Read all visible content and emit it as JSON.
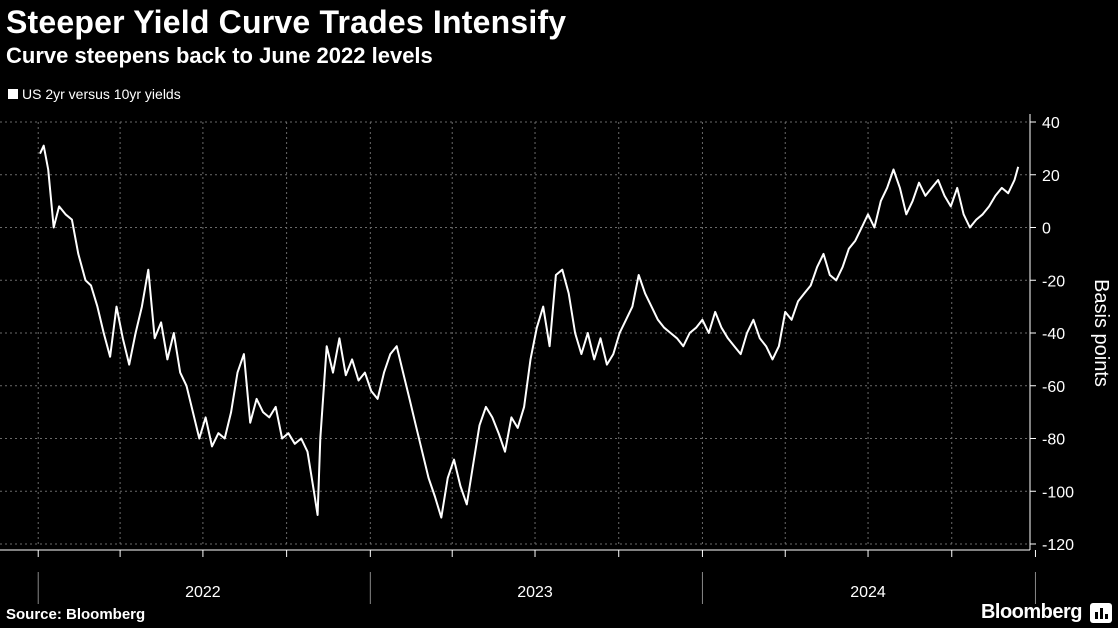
{
  "chart_data": {
    "type": "line",
    "title": "Steeper Yield Curve Trades Intensify",
    "subtitle": "Curve steepens back to June 2022 levels",
    "ylabel": "Basis points",
    "ylim": [
      -120,
      40
    ],
    "yticks": [
      40,
      20,
      0,
      -20,
      -40,
      -60,
      -80,
      -100,
      -120
    ],
    "xlim": [
      "2022-01-01",
      "2024-12-31"
    ],
    "xlabels": [
      "2022",
      "2023",
      "2024"
    ],
    "grid": true,
    "legend_position": "top-left",
    "series": [
      {
        "name": "US 2yr versus 10yr yields",
        "color": "#ffffff",
        "points": [
          [
            "2022-01-03",
            28
          ],
          [
            "2022-01-07",
            31
          ],
          [
            "2022-01-12",
            22
          ],
          [
            "2022-01-18",
            0
          ],
          [
            "2022-01-24",
            8
          ],
          [
            "2022-01-31",
            5
          ],
          [
            "2022-02-07",
            3
          ],
          [
            "2022-02-14",
            -10
          ],
          [
            "2022-02-22",
            -20
          ],
          [
            "2022-02-28",
            -22
          ],
          [
            "2022-03-07",
            -30
          ],
          [
            "2022-03-14",
            -40
          ],
          [
            "2022-03-21",
            -49
          ],
          [
            "2022-03-28",
            -30
          ],
          [
            "2022-04-04",
            -42
          ],
          [
            "2022-04-11",
            -52
          ],
          [
            "2022-04-18",
            -40
          ],
          [
            "2022-04-25",
            -30
          ],
          [
            "2022-05-02",
            -16
          ],
          [
            "2022-05-09",
            -42
          ],
          [
            "2022-05-16",
            -36
          ],
          [
            "2022-05-23",
            -50
          ],
          [
            "2022-05-30",
            -40
          ],
          [
            "2022-06-06",
            -55
          ],
          [
            "2022-06-13",
            -60
          ],
          [
            "2022-06-20",
            -70
          ],
          [
            "2022-06-27",
            -80
          ],
          [
            "2022-07-04",
            -72
          ],
          [
            "2022-07-11",
            -83
          ],
          [
            "2022-07-18",
            -78
          ],
          [
            "2022-07-25",
            -80
          ],
          [
            "2022-08-01",
            -70
          ],
          [
            "2022-08-08",
            -55
          ],
          [
            "2022-08-15",
            -48
          ],
          [
            "2022-08-22",
            -74
          ],
          [
            "2022-08-29",
            -65
          ],
          [
            "2022-09-05",
            -70
          ],
          [
            "2022-09-12",
            -72
          ],
          [
            "2022-09-19",
            -68
          ],
          [
            "2022-09-26",
            -80
          ],
          [
            "2022-10-03",
            -78
          ],
          [
            "2022-10-10",
            -82
          ],
          [
            "2022-10-17",
            -80
          ],
          [
            "2022-10-24",
            -85
          ],
          [
            "2022-10-31",
            -100
          ],
          [
            "2022-11-04",
            -109
          ],
          [
            "2022-11-07",
            -80
          ],
          [
            "2022-11-14",
            -45
          ],
          [
            "2022-11-21",
            -55
          ],
          [
            "2022-11-28",
            -42
          ],
          [
            "2022-12-05",
            -56
          ],
          [
            "2022-12-12",
            -50
          ],
          [
            "2022-12-19",
            -58
          ],
          [
            "2022-12-26",
            -55
          ],
          [
            "2023-01-02",
            -62
          ],
          [
            "2023-01-09",
            -65
          ],
          [
            "2023-01-16",
            -55
          ],
          [
            "2023-01-23",
            -48
          ],
          [
            "2023-01-30",
            -45
          ],
          [
            "2023-02-06",
            -55
          ],
          [
            "2023-02-13",
            -65
          ],
          [
            "2023-02-20",
            -75
          ],
          [
            "2023-02-27",
            -85
          ],
          [
            "2023-03-06",
            -95
          ],
          [
            "2023-03-13",
            -102
          ],
          [
            "2023-03-20",
            -110
          ],
          [
            "2023-03-27",
            -95
          ],
          [
            "2023-04-03",
            -88
          ],
          [
            "2023-04-10",
            -98
          ],
          [
            "2023-04-17",
            -105
          ],
          [
            "2023-04-24",
            -90
          ],
          [
            "2023-05-01",
            -75
          ],
          [
            "2023-05-08",
            -68
          ],
          [
            "2023-05-15",
            -72
          ],
          [
            "2023-05-22",
            -78
          ],
          [
            "2023-05-29",
            -85
          ],
          [
            "2023-06-05",
            -72
          ],
          [
            "2023-06-12",
            -76
          ],
          [
            "2023-06-19",
            -68
          ],
          [
            "2023-06-26",
            -50
          ],
          [
            "2023-07-03",
            -38
          ],
          [
            "2023-07-10",
            -30
          ],
          [
            "2023-07-17",
            -45
          ],
          [
            "2023-07-24",
            -18
          ],
          [
            "2023-07-31",
            -16
          ],
          [
            "2023-08-07",
            -25
          ],
          [
            "2023-08-14",
            -40
          ],
          [
            "2023-08-21",
            -48
          ],
          [
            "2023-08-28",
            -40
          ],
          [
            "2023-09-04",
            -50
          ],
          [
            "2023-09-11",
            -42
          ],
          [
            "2023-09-18",
            -52
          ],
          [
            "2023-09-25",
            -48
          ],
          [
            "2023-10-02",
            -40
          ],
          [
            "2023-10-09",
            -35
          ],
          [
            "2023-10-16",
            -30
          ],
          [
            "2023-10-23",
            -18
          ],
          [
            "2023-10-30",
            -25
          ],
          [
            "2023-11-06",
            -30
          ],
          [
            "2023-11-13",
            -35
          ],
          [
            "2023-11-20",
            -38
          ],
          [
            "2023-11-27",
            -40
          ],
          [
            "2023-12-04",
            -42
          ],
          [
            "2023-12-11",
            -45
          ],
          [
            "2023-12-18",
            -40
          ],
          [
            "2023-12-25",
            -38
          ],
          [
            "2024-01-01",
            -35
          ],
          [
            "2024-01-08",
            -40
          ],
          [
            "2024-01-15",
            -32
          ],
          [
            "2024-01-22",
            -38
          ],
          [
            "2024-01-29",
            -42
          ],
          [
            "2024-02-05",
            -45
          ],
          [
            "2024-02-12",
            -48
          ],
          [
            "2024-02-19",
            -40
          ],
          [
            "2024-02-26",
            -35
          ],
          [
            "2024-03-04",
            -42
          ],
          [
            "2024-03-11",
            -45
          ],
          [
            "2024-03-18",
            -50
          ],
          [
            "2024-03-25",
            -45
          ],
          [
            "2024-04-01",
            -32
          ],
          [
            "2024-04-08",
            -35
          ],
          [
            "2024-04-15",
            -28
          ],
          [
            "2024-04-22",
            -25
          ],
          [
            "2024-04-29",
            -22
          ],
          [
            "2024-05-06",
            -15
          ],
          [
            "2024-05-13",
            -10
          ],
          [
            "2024-05-20",
            -18
          ],
          [
            "2024-05-27",
            -20
          ],
          [
            "2024-06-03",
            -15
          ],
          [
            "2024-06-10",
            -8
          ],
          [
            "2024-06-17",
            -5
          ],
          [
            "2024-06-24",
            0
          ],
          [
            "2024-07-01",
            5
          ],
          [
            "2024-07-08",
            0
          ],
          [
            "2024-07-15",
            10
          ],
          [
            "2024-07-22",
            15
          ],
          [
            "2024-07-29",
            22
          ],
          [
            "2024-08-05",
            15
          ],
          [
            "2024-08-12",
            5
          ],
          [
            "2024-08-19",
            10
          ],
          [
            "2024-08-26",
            17
          ],
          [
            "2024-09-02",
            12
          ],
          [
            "2024-09-09",
            15
          ],
          [
            "2024-09-16",
            18
          ],
          [
            "2024-09-23",
            12
          ],
          [
            "2024-09-30",
            8
          ],
          [
            "2024-10-07",
            15
          ],
          [
            "2024-10-14",
            5
          ],
          [
            "2024-10-21",
            0
          ],
          [
            "2024-10-28",
            3
          ],
          [
            "2024-11-04",
            5
          ],
          [
            "2024-11-11",
            8
          ],
          [
            "2024-11-18",
            12
          ],
          [
            "2024-11-25",
            15
          ],
          [
            "2024-12-02",
            13
          ],
          [
            "2024-12-09",
            18
          ],
          [
            "2024-12-13",
            23
          ]
        ]
      }
    ]
  },
  "source": "Source: Bloomberg",
  "brand": "Bloomberg"
}
